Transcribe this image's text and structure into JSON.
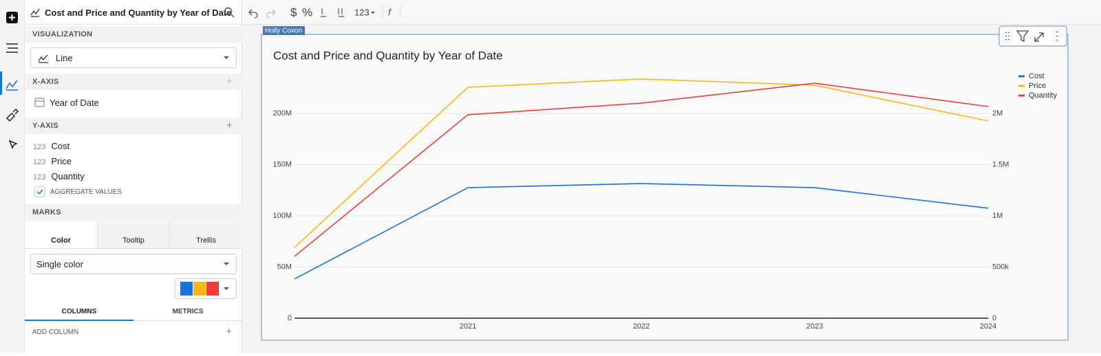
{
  "sidebar": {
    "title": "Cost and Price and Quantity by Year of Date",
    "visualization_label": "VISUALIZATION",
    "visualization": "Line",
    "x_axis_label": "X-AXIS",
    "x_field": "Year of Date",
    "y_axis_label": "Y-AXIS",
    "y_fields": [
      {
        "type": "123",
        "name": "Cost"
      },
      {
        "type": "123",
        "name": "Price"
      },
      {
        "type": "123",
        "name": "Quantity"
      }
    ],
    "aggregate": "AGGREGATE VALUES",
    "marks_label": "MARKS",
    "mark_tabs": [
      "Color",
      "Tooltip",
      "Trellis"
    ],
    "color_mode": "Single color",
    "panel_tabs": [
      "COLUMNS",
      "METRICS"
    ],
    "add_column": "ADD COLUMN"
  },
  "toolbar": {
    "currency": "$",
    "percent": "%",
    "number_format": "123"
  },
  "owner_tag": "Holly Coxon",
  "chart_data": {
    "type": "line",
    "title": "Cost and Price and Quantity by Year of Date",
    "categories": [
      null,
      "2021",
      "2022",
      "2023",
      "2024"
    ],
    "series": [
      {
        "name": "Cost",
        "color": "#1a73d4",
        "values": [
          38300000,
          127500000,
          131500000,
          127500000,
          107400000
        ]
      },
      {
        "name": "Price",
        "color": "#f5b817",
        "values": [
          69100000,
          225500000,
          233600000,
          227500000,
          192600000
        ]
      },
      {
        "name": "Quantity",
        "color": "#e8413c",
        "axis": "y2",
        "values": [
          604000,
          1987000,
          2100000,
          2295000,
          2067000
        ]
      }
    ],
    "ylim": [
      0,
      240000000
    ],
    "yticks": [
      0,
      {
        "value": 50000000,
        "label": "50M"
      },
      {
        "value": 100000000,
        "label": "100M"
      },
      {
        "value": 150000000,
        "label": "150M"
      },
      {
        "value": 200000000,
        "label": "200M"
      }
    ],
    "y2lim": [
      0,
      2400000
    ],
    "y2ticks": [
      0,
      {
        "value": 500000,
        "label": "500k"
      },
      {
        "value": 1000000,
        "label": "1M"
      },
      {
        "value": 1500000,
        "label": "1.5M"
      },
      {
        "value": 2000000,
        "label": "2M"
      }
    ],
    "grid": true,
    "legend": "top-right"
  }
}
